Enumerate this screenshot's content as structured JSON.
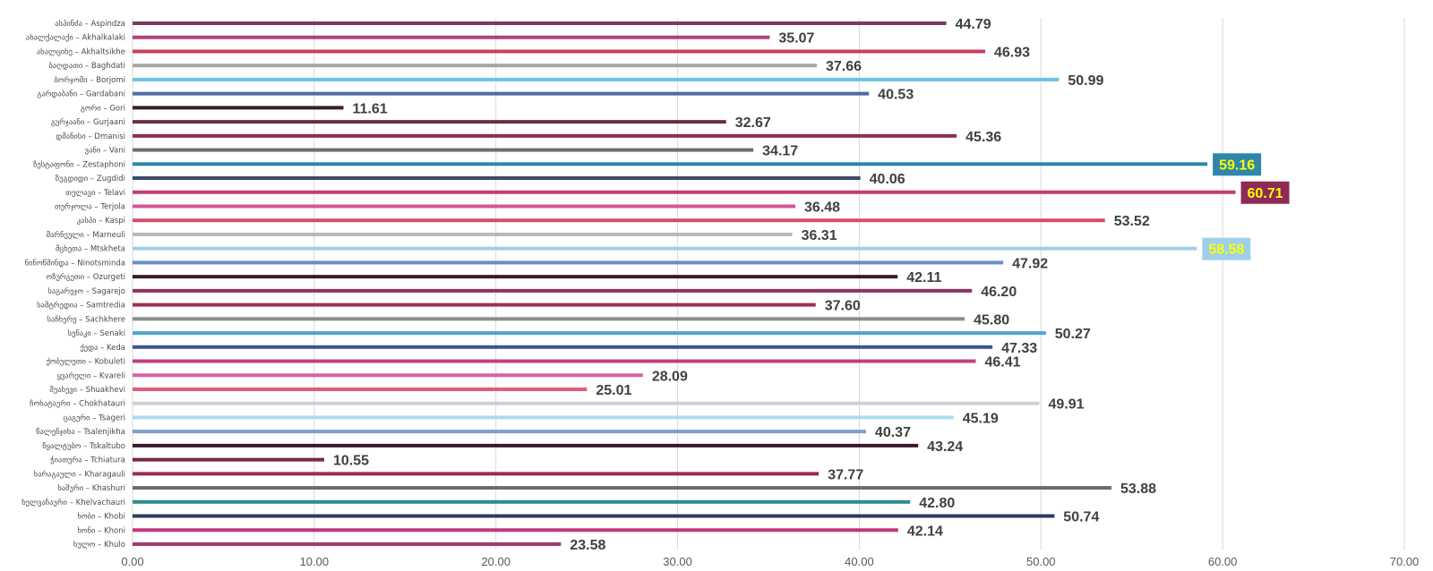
{
  "chart_data": {
    "type": "bar",
    "orientation": "horizontal",
    "title": "",
    "xlabel": "",
    "ylabel": "",
    "xlim": [
      0,
      70
    ],
    "x_ticks": [
      "0.00",
      "10.00",
      "20.00",
      "30.00",
      "40.00",
      "50.00",
      "60.00",
      "70.00"
    ],
    "grid": true,
    "categories": [
      "ასპინძა – Aspindza",
      "ახალქალაქი – Akhalkalaki",
      "ახალციხე – Akhaltsikhe",
      "ბაღდათი – Baghdati",
      "ბორჯომი – Borjomi",
      "გარდაბანი – Gardabani",
      "გორი – Gori",
      "გურჯაანი – Gurjaani",
      "დმანისი – Dmanisi",
      "ვანი – Vani",
      "ზესტაფონი – Zestaphoni",
      "ზუგდიდი – Zugdidi",
      "თელავი – Telavi",
      "თერჯოლა – Terjola",
      "კასპი – Kaspi",
      "მარნეული – Marneuli",
      "მცხეთა – Mtskheta",
      "ნინოწმინდა – Ninotsminda",
      "ოზურგეთი – Ozurgeti",
      "საგარეჯო – Sagarejo",
      "სამტრედია – Samtredia",
      "საჩხერე – Sachkhere",
      "სენაკი – Senaki",
      "ქედა – Keda",
      "ქობულეთი – Kobuleti",
      "ყვარელი – Kvareli",
      "შუახევი – Shuakhevi",
      "ჩოხატაური – Chokhatauri",
      "ცაგერი – Tsageri",
      "წალენჯიხა – Tsalenjikha",
      "წყალტუბო – Tskaltubo",
      "ჭიათურა – Tchiatura",
      "ხარაგაული – Kharagauli",
      "ხაშური – Khashuri",
      "ხელვაჩაური – Khelvachauri",
      "ხობი – Khobi",
      "ხონი – Khoni",
      "ხულო – Khulo"
    ],
    "values": [
      44.79,
      35.07,
      46.93,
      37.66,
      50.99,
      40.53,
      11.61,
      32.67,
      45.36,
      34.17,
      59.16,
      40.06,
      60.71,
      36.48,
      53.52,
      36.31,
      58.58,
      47.92,
      42.11,
      46.2,
      37.6,
      45.8,
      50.27,
      47.33,
      46.41,
      28.09,
      25.01,
      49.91,
      45.19,
      40.37,
      43.24,
      10.55,
      37.77,
      53.88,
      42.8,
      50.74,
      42.14,
      23.58
    ],
    "value_labels": [
      "44.79",
      "35.07",
      "46.93",
      "37.66",
      "50.99",
      "40.53",
      "11.61",
      "32.67",
      "45.36",
      "34.17",
      "59.16",
      "40.06",
      "60.71",
      "36.48",
      "53.52",
      "36.31",
      "58.58",
      "47.92",
      "42.11",
      "46.20",
      "37.60",
      "45.80",
      "50.27",
      "47.33",
      "46.41",
      "28.09",
      "25.01",
      "49.91",
      "45.19",
      "40.37",
      "43.24",
      "10.55",
      "37.77",
      "53.88",
      "42.80",
      "50.74",
      "42.14",
      "23.58"
    ],
    "bar_colors": [
      "#7a3a5e",
      "#b0407e",
      "#c8405f",
      "#a6a6a6",
      "#6ec1e4",
      "#4a6fa5",
      "#3b1d2e",
      "#6b2d45",
      "#8b2f4a",
      "#6d6e71",
      "#2e86ab",
      "#3a4a6b",
      "#c43d6e",
      "#d4559a",
      "#d44d6e",
      "#b8b8b8",
      "#9fd0ea",
      "#6a8cc7",
      "#3d1a2a",
      "#8a3460",
      "#a3304f",
      "#8c8c8c",
      "#4fa3d6",
      "#3a5590",
      "#c0407f",
      "#dd5fa8",
      "#e05c7a",
      "#cfcfd6",
      "#a9dcee",
      "#7d9ed0",
      "#3a1a2c",
      "#7a2843",
      "#9a2d48",
      "#6b6b6b",
      "#2f8c8c",
      "#2e3b5c",
      "#c2377a",
      "#a03a6e"
    ],
    "highlights": [
      {
        "index": 10,
        "box_color": "#2e86ab"
      },
      {
        "index": 12,
        "box_color": "#8e2a57"
      },
      {
        "index": 16,
        "box_color": "#9fd0ea"
      }
    ]
  }
}
